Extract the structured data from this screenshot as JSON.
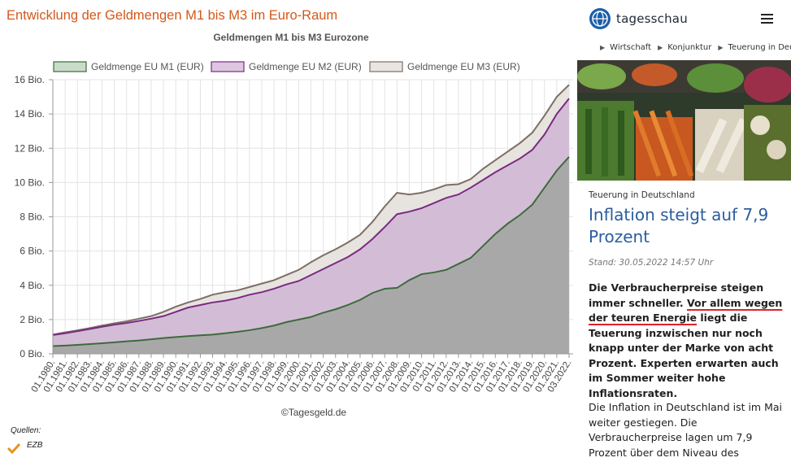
{
  "page": {
    "heading": "Entwicklung der Geldmengen M1 bis M3 im Euro-Raum",
    "credit": "©Tagesgeld.de",
    "sources_label": "Quellen:",
    "sources": [
      "EZB"
    ]
  },
  "chart_data": {
    "type": "area",
    "title": "Geldmengen M1 bis M3 Eurozone",
    "categories": [
      "01.1980.",
      "01.1981.",
      "01.1982.",
      "01.1983.",
      "01.1984.",
      "01.1985.",
      "01.1986.",
      "01.1987.",
      "01.1988.",
      "01.1989.",
      "01.1990.",
      "01.1991.",
      "01.1992.",
      "01.1993.",
      "01.1994.",
      "01.1995.",
      "01.1996.",
      "01.1997.",
      "01.1998.",
      "01.1999.",
      "01.2000.",
      "01.2001.",
      "01.2002.",
      "01.2003.",
      "01.2004.",
      "01.2005.",
      "01.2006.",
      "01.2007.",
      "01.2008.",
      "01.2009.",
      "01.2010.",
      "01.2011.",
      "01.2012.",
      "01.2013.",
      "01.2014.",
      "01.2015.",
      "01.2016.",
      "01.2017.",
      "01.2018.",
      "01.2019.",
      "01.2020.",
      "01.2021.",
      "03.2022."
    ],
    "series": [
      {
        "name": "Geldmenge EU M3 (EUR)",
        "color": "#7d6e66",
        "fill": "#e7e3df",
        "swatch": "#e9e6e2",
        "values": [
          1.12,
          1.25,
          1.37,
          1.5,
          1.65,
          1.78,
          1.9,
          2.05,
          2.2,
          2.45,
          2.75,
          3.0,
          3.2,
          3.45,
          3.6,
          3.7,
          3.9,
          4.1,
          4.3,
          4.6,
          4.9,
          5.35,
          5.75,
          6.1,
          6.5,
          6.95,
          7.7,
          8.6,
          9.4,
          9.3,
          9.4,
          9.6,
          9.85,
          9.9,
          10.2,
          10.8,
          11.3,
          11.8,
          12.3,
          12.9,
          13.9,
          15.0,
          15.7
        ]
      },
      {
        "name": "Geldmenge EU M2 (EUR)",
        "color": "#7b2a82",
        "fill": "#d3bdd6",
        "swatch": "#dcc6e0",
        "values": [
          1.1,
          1.2,
          1.32,
          1.45,
          1.58,
          1.7,
          1.8,
          1.92,
          2.05,
          2.2,
          2.45,
          2.7,
          2.85,
          3.0,
          3.1,
          3.25,
          3.45,
          3.6,
          3.8,
          4.05,
          4.25,
          4.6,
          4.95,
          5.3,
          5.65,
          6.1,
          6.7,
          7.4,
          8.15,
          8.3,
          8.5,
          8.8,
          9.1,
          9.3,
          9.7,
          10.15,
          10.6,
          11.0,
          11.4,
          11.9,
          12.8,
          14.0,
          14.9
        ]
      },
      {
        "name": "Geldmenge EU M1 (EUR)",
        "color": "#3d6b3d",
        "fill": "#a9a8a8",
        "swatch": "#c9dcc9",
        "values": [
          0.45,
          0.48,
          0.52,
          0.57,
          0.62,
          0.67,
          0.73,
          0.78,
          0.85,
          0.92,
          0.98,
          1.03,
          1.08,
          1.12,
          1.2,
          1.28,
          1.38,
          1.5,
          1.65,
          1.85,
          2.0,
          2.15,
          2.4,
          2.6,
          2.85,
          3.15,
          3.55,
          3.8,
          3.85,
          4.3,
          4.65,
          4.75,
          4.9,
          5.25,
          5.6,
          6.3,
          7.0,
          7.6,
          8.1,
          8.7,
          9.7,
          10.7,
          11.5
        ]
      }
    ],
    "legend_order": [
      2,
      1,
      0
    ],
    "ylim": [
      0,
      16
    ],
    "yticks": [
      {
        "value": 0,
        "label": "0 Bio."
      },
      {
        "value": 2,
        "label": "2 Bio."
      },
      {
        "value": 4,
        "label": "4 Bio."
      },
      {
        "value": 6,
        "label": "6 Bio."
      },
      {
        "value": 8,
        "label": "8 Bio."
      },
      {
        "value": 10,
        "label": "10 Bio."
      },
      {
        "value": 12,
        "label": "12 Bio."
      },
      {
        "value": 14,
        "label": "14 Bio."
      },
      {
        "value": 16,
        "label": "16 Bio."
      }
    ],
    "grid": true,
    "legend": "top"
  },
  "site": {
    "brand": "tagesschau",
    "breadcrumbs": [
      "Wirtschaft",
      "Konjunktur",
      "Teuerung in Deutschland"
    ]
  },
  "article": {
    "kicker": "Teuerung in Deutschland",
    "headline": "Inflation steigt auf 7,9 Prozent",
    "stand": "Stand: 30.05.2022 14:57 Uhr",
    "lead": [
      "Die Verbraucherpreise steigen immer schneller. ",
      "Vor allem wegen der teuren Energie",
      " liegt die Teuerung inzwischen nur noch knapp unter der Marke von acht Prozent. Experten erwarten auch im Sommer weiter hohe Inflationsraten."
    ],
    "body": "Die Inflation in Deutschland ist im Mai weiter gestiegen. Die Verbraucherpreise lagen um 7,9 Prozent über dem Niveau des"
  }
}
